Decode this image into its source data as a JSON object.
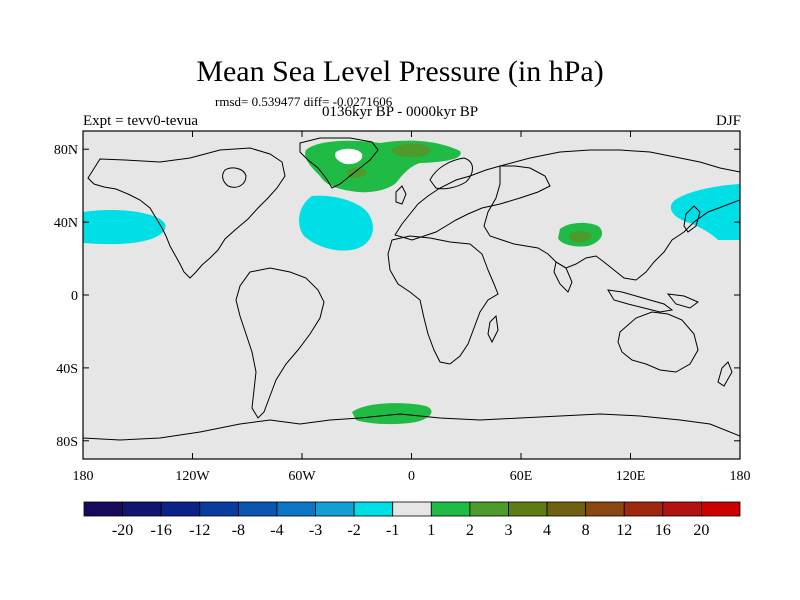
{
  "chart": {
    "title": "Mean Sea Level Pressure (in hPa)",
    "stats": "rmsd= 0.539477 diff= -0.0271606",
    "period": "0136kyr BP - 0000kyr BP",
    "experiment": "Expt = tevv0-tevua",
    "season": "DJF"
  },
  "chart_data": {
    "type": "heatmap",
    "projection": "cylindrical-equidistant",
    "x_range": [
      -180,
      180
    ],
    "y_range": [
      -90,
      90
    ],
    "x_ticks": [
      {
        "value": -180,
        "label": "180"
      },
      {
        "value": -120,
        "label": "120W"
      },
      {
        "value": -60,
        "label": "60W"
      },
      {
        "value": 0,
        "label": "0"
      },
      {
        "value": 60,
        "label": "60E"
      },
      {
        "value": 120,
        "label": "120E"
      },
      {
        "value": 180,
        "label": "180"
      }
    ],
    "y_ticks": [
      {
        "value": 80,
        "label": "80N"
      },
      {
        "value": 40,
        "label": "40N"
      },
      {
        "value": 0,
        "label": "0"
      },
      {
        "value": -40,
        "label": "40S"
      },
      {
        "value": -80,
        "label": "80S"
      }
    ],
    "background_level": "-1 to 1",
    "colorbar": {
      "labels": [
        "-20",
        "-16",
        "-12",
        "-8",
        "-4",
        "-3",
        "-2",
        "-1",
        "1",
        "2",
        "3",
        "4",
        "8",
        "12",
        "16",
        "20"
      ],
      "colors": [
        "#1a0a5e",
        "#101672",
        "#0b2388",
        "#0a3b9e",
        "#0a56b0",
        "#0c75c4",
        "#139fd3",
        "#00dfe6",
        "#e6e6e6",
        "#1fbb45",
        "#4e9a2a",
        "#5d7d14",
        "#6e6112",
        "#8a4712",
        "#a0280e",
        "#b41212",
        "#cc0000"
      ]
    },
    "anomalies": [
      {
        "region": "North Pacific (east of dateline)",
        "range": "-2 to -1",
        "lon": [
          -180,
          -138
        ],
        "lat": [
          30,
          46
        ]
      },
      {
        "region": "North Atlantic",
        "range": "-2 to -1",
        "lon": [
          -42,
          -15
        ],
        "lat": [
          22,
          46
        ]
      },
      {
        "region": "Northwest Pacific",
        "range": "-2 to -1",
        "lon": [
          145,
          180
        ],
        "lat": [
          30,
          60
        ]
      },
      {
        "region": "Greenland / Arctic",
        "range": "1 to 2",
        "lon": [
          -55,
          30
        ],
        "lat": [
          63,
          84
        ]
      },
      {
        "region": "Tibetan Plateau",
        "range": "1 to 2",
        "lon": [
          80,
          105
        ],
        "lat": [
          25,
          37
        ]
      },
      {
        "region": "Antarctic coast",
        "range": "1 to 2",
        "lon": [
          -32,
          12
        ],
        "lat": [
          -68,
          -60
        ]
      },
      {
        "region": "Greenland / Arctic cores",
        "range": "2 to 3",
        "lon": [
          -35,
          5
        ],
        "lat": [
          65,
          82
        ]
      },
      {
        "region": "Tibetan Plateau core",
        "range": "2 to 3",
        "lon": [
          85,
          100
        ],
        "lat": [
          29,
          35
        ]
      }
    ]
  }
}
